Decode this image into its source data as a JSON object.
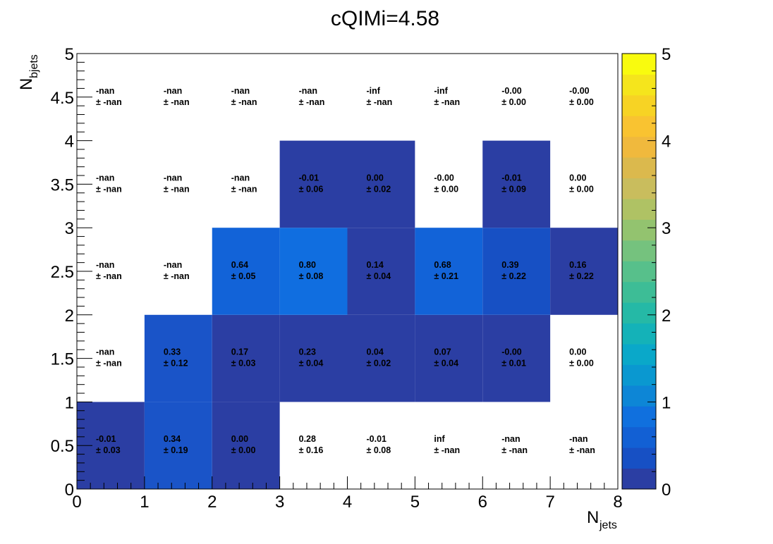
{
  "chart_data": {
    "type": "heatmap",
    "title": "cQIMi=4.58",
    "xlabel": {
      "main": "N",
      "sub": "jets"
    },
    "ylabel": {
      "main": "N",
      "sub": "bjets"
    },
    "xlim": [
      0,
      8
    ],
    "ylim": [
      0,
      5
    ],
    "zlim": [
      0,
      5
    ],
    "x_bins": [
      0,
      1,
      2,
      3,
      4,
      5,
      6,
      7,
      8
    ],
    "y_bins": [
      0,
      1,
      2,
      3,
      4,
      5
    ],
    "x_tick_labels": [
      "0",
      "1",
      "2",
      "3",
      "4",
      "5",
      "6",
      "7",
      "8"
    ],
    "y_tick_labels": [
      "0",
      "0.5",
      "1",
      "1.5",
      "2",
      "2.5",
      "3",
      "3.5",
      "4",
      "4.5",
      "5"
    ],
    "z_tick_labels": [
      "0",
      "1",
      "2",
      "3",
      "4",
      "5"
    ],
    "palette": [
      "#2b3ea3",
      "#1750c4",
      "#1260d4",
      "#1070de",
      "#0d86d6",
      "#0a98d0",
      "#0aa8c9",
      "#14b2b8",
      "#25b9a6",
      "#3dbd96",
      "#57c08b",
      "#75c27e",
      "#93c36f",
      "#afc264",
      "#c9bd5d",
      "#dbb94d",
      "#f0b93d",
      "#f9c331",
      "#f7d324",
      "#f5e51c",
      "#f9fb0e"
    ],
    "grid": false,
    "cells": [
      {
        "x": 0.5,
        "y": 0.5,
        "z": -0.01,
        "label": "-0.01",
        "err": "± 0.03"
      },
      {
        "x": 1.5,
        "y": 0.5,
        "z": 0.34,
        "label": "0.34",
        "err": "± 0.19"
      },
      {
        "x": 2.5,
        "y": 0.5,
        "z": 0.0,
        "label": "0.00",
        "err": "± 0.00"
      },
      {
        "x": 3.5,
        "y": 0.5,
        "z": 0.28,
        "label": "0.28",
        "err": "± 0.16"
      },
      {
        "x": 4.5,
        "y": 0.5,
        "z": -0.01,
        "label": "-0.01",
        "err": "± 0.08"
      },
      {
        "x": 5.5,
        "y": 0.5,
        "z": null,
        "label": "inf",
        "err": "± -nan"
      },
      {
        "x": 6.5,
        "y": 0.5,
        "z": null,
        "label": "-nan",
        "err": "± -nan"
      },
      {
        "x": 7.5,
        "y": 0.5,
        "z": null,
        "label": "-nan",
        "err": "± -nan"
      },
      {
        "x": 0.5,
        "y": 1.5,
        "z": null,
        "label": "-nan",
        "err": "± -nan"
      },
      {
        "x": 1.5,
        "y": 1.5,
        "z": 0.33,
        "label": "0.33",
        "err": "± 0.12"
      },
      {
        "x": 2.5,
        "y": 1.5,
        "z": 0.17,
        "label": "0.17",
        "err": "± 0.03"
      },
      {
        "x": 3.5,
        "y": 1.5,
        "z": 0.23,
        "label": "0.23",
        "err": "± 0.04"
      },
      {
        "x": 4.5,
        "y": 1.5,
        "z": 0.04,
        "label": "0.04",
        "err": "± 0.02"
      },
      {
        "x": 5.5,
        "y": 1.5,
        "z": 0.07,
        "label": "0.07",
        "err": "± 0.04"
      },
      {
        "x": 6.5,
        "y": 1.5,
        "z": -0.0,
        "label": "-0.00",
        "err": "± 0.01"
      },
      {
        "x": 7.5,
        "y": 1.5,
        "z": 0.0,
        "label": "0.00",
        "err": "± 0.00"
      },
      {
        "x": 0.5,
        "y": 2.5,
        "z": null,
        "label": "-nan",
        "err": "± -nan"
      },
      {
        "x": 1.5,
        "y": 2.5,
        "z": null,
        "label": "-nan",
        "err": "± -nan"
      },
      {
        "x": 2.5,
        "y": 2.5,
        "z": 0.64,
        "label": "0.64",
        "err": "± 0.05"
      },
      {
        "x": 3.5,
        "y": 2.5,
        "z": 0.8,
        "label": "0.80",
        "err": "± 0.08"
      },
      {
        "x": 4.5,
        "y": 2.5,
        "z": 0.14,
        "label": "0.14",
        "err": "± 0.04"
      },
      {
        "x": 5.5,
        "y": 2.5,
        "z": 0.68,
        "label": "0.68",
        "err": "± 0.21"
      },
      {
        "x": 6.5,
        "y": 2.5,
        "z": 0.39,
        "label": "0.39",
        "err": "± 0.22"
      },
      {
        "x": 7.5,
        "y": 2.5,
        "z": 0.16,
        "label": "0.16",
        "err": "± 0.22"
      },
      {
        "x": 0.5,
        "y": 3.5,
        "z": null,
        "label": "-nan",
        "err": "± -nan"
      },
      {
        "x": 1.5,
        "y": 3.5,
        "z": null,
        "label": "-nan",
        "err": "± -nan"
      },
      {
        "x": 2.5,
        "y": 3.5,
        "z": null,
        "label": "-nan",
        "err": "± -nan"
      },
      {
        "x": 3.5,
        "y": 3.5,
        "z": -0.01,
        "label": "-0.01",
        "err": "± 0.06"
      },
      {
        "x": 4.5,
        "y": 3.5,
        "z": 0.0,
        "label": "0.00",
        "err": "± 0.02"
      },
      {
        "x": 5.5,
        "y": 3.5,
        "z": -0.0,
        "label": "-0.00",
        "err": "± 0.00"
      },
      {
        "x": 6.5,
        "y": 3.5,
        "z": -0.01,
        "label": "-0.01",
        "err": "± 0.09"
      },
      {
        "x": 7.5,
        "y": 3.5,
        "z": 0.0,
        "label": "0.00",
        "err": "± 0.00"
      },
      {
        "x": 0.5,
        "y": 4.5,
        "z": null,
        "label": "-nan",
        "err": "± -nan"
      },
      {
        "x": 1.5,
        "y": 4.5,
        "z": null,
        "label": "-nan",
        "err": "± -nan"
      },
      {
        "x": 2.5,
        "y": 4.5,
        "z": null,
        "label": "-nan",
        "err": "± -nan"
      },
      {
        "x": 3.5,
        "y": 4.5,
        "z": null,
        "label": "-nan",
        "err": "± -nan"
      },
      {
        "x": 4.5,
        "y": 4.5,
        "z": null,
        "label": "-inf",
        "err": "± -nan"
      },
      {
        "x": 5.5,
        "y": 4.5,
        "z": null,
        "label": "-inf",
        "err": "± -nan"
      },
      {
        "x": 6.5,
        "y": 4.5,
        "z": -0.0,
        "label": "-0.00",
        "err": "± 0.00"
      },
      {
        "x": 7.5,
        "y": 4.5,
        "z": -0.0,
        "label": "-0.00",
        "err": "± 0.00"
      }
    ],
    "filled_cells": [
      {
        "x": 0.5,
        "y": 0.5,
        "color": "#2b3ea3"
      },
      {
        "x": 1.5,
        "y": 0.5,
        "color": "#1a54c8"
      },
      {
        "x": 2.5,
        "y": 0.5,
        "color": "#2b3ea3"
      },
      {
        "x": 1.5,
        "y": 1.5,
        "color": "#1a54c8"
      },
      {
        "x": 2.5,
        "y": 1.5,
        "color": "#2b3ea3"
      },
      {
        "x": 3.5,
        "y": 1.5,
        "color": "#2b3ea3"
      },
      {
        "x": 4.5,
        "y": 1.5,
        "color": "#2b3ea3"
      },
      {
        "x": 5.5,
        "y": 1.5,
        "color": "#2b3ea3"
      },
      {
        "x": 6.5,
        "y": 1.5,
        "color": "#2b3ea3"
      },
      {
        "x": 2.5,
        "y": 2.5,
        "color": "#1263d8"
      },
      {
        "x": 3.5,
        "y": 2.5,
        "color": "#106ee0"
      },
      {
        "x": 4.5,
        "y": 2.5,
        "color": "#2b3ea3"
      },
      {
        "x": 5.5,
        "y": 2.5,
        "color": "#1263d8"
      },
      {
        "x": 6.5,
        "y": 2.5,
        "color": "#1750c4"
      },
      {
        "x": 7.5,
        "y": 2.5,
        "color": "#2b3ea3"
      },
      {
        "x": 3.5,
        "y": 3.5,
        "color": "#2b3ea3"
      },
      {
        "x": 4.5,
        "y": 3.5,
        "color": "#2b3ea3"
      },
      {
        "x": 6.5,
        "y": 3.5,
        "color": "#2b3ea3"
      }
    ]
  }
}
